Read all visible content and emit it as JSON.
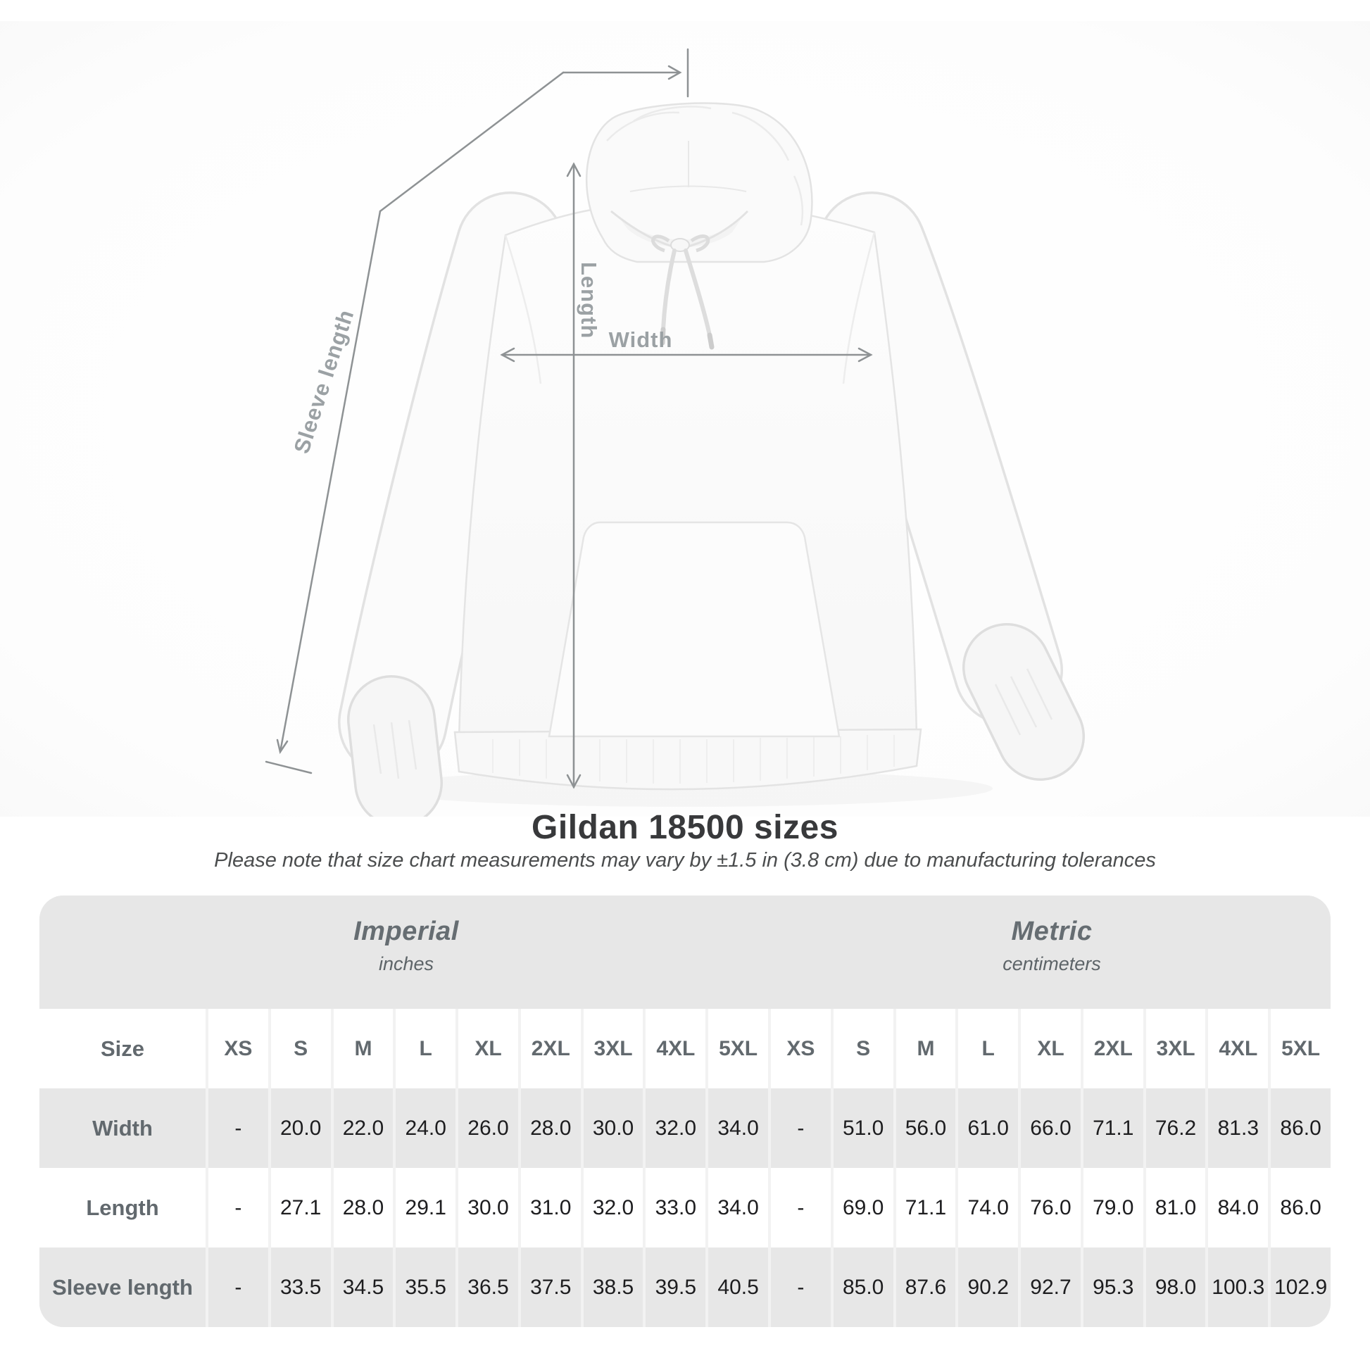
{
  "diagram": {
    "sleeve_length_label": "Sleeve length",
    "length_label": "Length",
    "width_label": "Width"
  },
  "title": "Gildan 18500 sizes",
  "note": "Please note that size chart measurements may vary by ±1.5 in (3.8 cm) due to manufacturing tolerances",
  "table": {
    "size_header": "Size",
    "unit_groups": [
      {
        "label": "Imperial",
        "sublabel": "inches"
      },
      {
        "label": "Metric",
        "sublabel": "centimeters"
      }
    ],
    "sizes": [
      "XS",
      "S",
      "M",
      "L",
      "XL",
      "2XL",
      "3XL",
      "4XL",
      "5XL"
    ],
    "rows": [
      {
        "label": "Width",
        "imperial": [
          "-",
          "20.0",
          "22.0",
          "24.0",
          "26.0",
          "28.0",
          "30.0",
          "32.0",
          "34.0"
        ],
        "metric": [
          "-",
          "51.0",
          "56.0",
          "61.0",
          "66.0",
          "71.1",
          "76.2",
          "81.3",
          "86.0"
        ]
      },
      {
        "label": "Length",
        "imperial": [
          "-",
          "27.1",
          "28.0",
          "29.1",
          "30.0",
          "31.0",
          "32.0",
          "33.0",
          "34.0"
        ],
        "metric": [
          "-",
          "69.0",
          "71.1",
          "74.0",
          "76.0",
          "79.0",
          "81.0",
          "84.0",
          "86.0"
        ]
      },
      {
        "label": "Sleeve length",
        "imperial": [
          "-",
          "33.5",
          "34.5",
          "35.5",
          "36.5",
          "37.5",
          "38.5",
          "39.5",
          "40.5"
        ],
        "metric": [
          "-",
          "85.0",
          "87.6",
          "90.2",
          "92.7",
          "95.3",
          "98.0",
          "100.3",
          "102.9"
        ]
      }
    ]
  },
  "colors": {
    "band_gray": "#e7e7e7",
    "row_gray": "#e7e7e7",
    "header_text": "#62696e",
    "value_text": "#1d1d1f",
    "annotation_line": "#8e9294",
    "annotation_label": "#9ba1a4",
    "title_text": "#38393b"
  }
}
